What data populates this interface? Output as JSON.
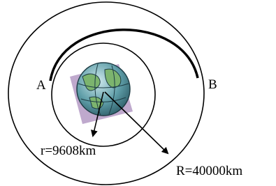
{
  "labels": {
    "point_a": "A",
    "point_b": "B",
    "inner_radius": "r=9608km",
    "outer_radius": "R=40000km"
  }
}
